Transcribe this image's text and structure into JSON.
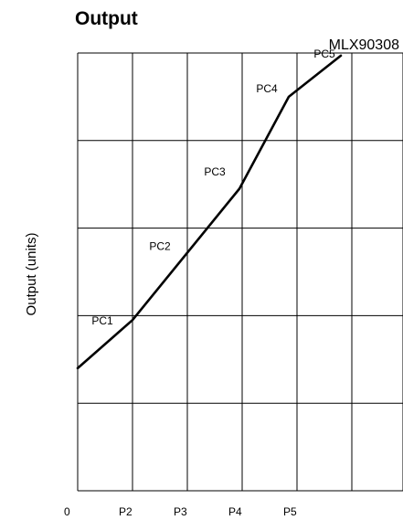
{
  "chart_data": {
    "type": "line",
    "title": "Output",
    "chip_label": "MLX90308",
    "ylabel": "Output (units)",
    "xlabel": "",
    "x_tick_labels": [
      "0",
      "P2",
      "P3",
      "P4",
      "P5"
    ],
    "x_ticks": [
      0,
      1,
      2,
      3,
      4
    ],
    "xlim": [
      0,
      5.3
    ],
    "ylim": [
      0,
      5
    ],
    "grid": true,
    "series": [
      {
        "points": [
          {
            "x": 0,
            "y": 1.4
          },
          {
            "x": 1,
            "y": 1.95
          },
          {
            "x": 2.95,
            "y": 3.45
          },
          {
            "x": 3.85,
            "y": 4.5
          },
          {
            "x": 4.8,
            "y": 4.97
          }
        ]
      }
    ],
    "segment_labels": [
      {
        "text": "PC1",
        "x": 0.45,
        "y": 1.9
      },
      {
        "text": "PC2",
        "x": 1.5,
        "y": 2.75
      },
      {
        "text": "PC3",
        "x": 2.5,
        "y": 3.6
      },
      {
        "text": "PC4",
        "x": 3.45,
        "y": 4.55
      },
      {
        "text": "PC5",
        "x": 4.5,
        "y": 4.95
      }
    ]
  }
}
